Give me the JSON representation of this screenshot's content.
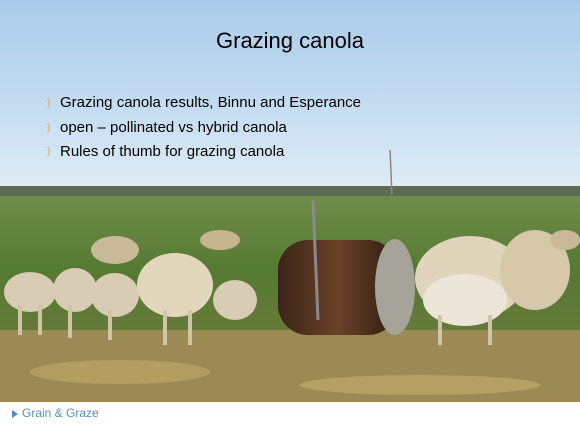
{
  "slide": {
    "title": "Grazing canola",
    "bullets": [
      "Grazing canola results, Binnu and Esperance",
      "open – pollinated vs hybrid canola",
      "Rules of thumb for grazing canola"
    ]
  },
  "footer": {
    "logo": "Grain & Graze"
  }
}
